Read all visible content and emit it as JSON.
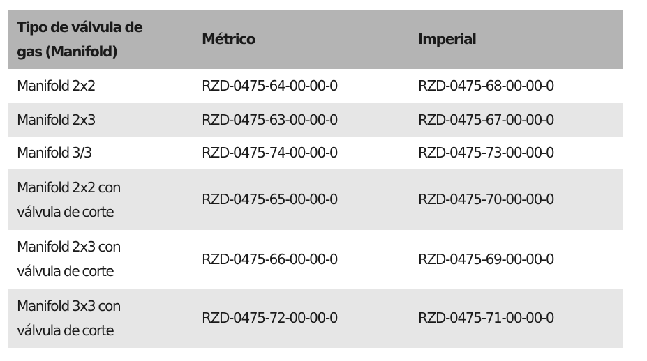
{
  "table": {
    "header": [
      "Tipo de válvula de gas (Manifold)",
      "Métrico",
      "Imperial"
    ],
    "rows": [
      [
        "Manifold 2x2",
        "RZD-0475-64-00-00-0",
        "RZD-0475-68-00-00-0"
      ],
      [
        "Manifold 2x3",
        "RZD-0475-63-00-00-0",
        "RZD-0475-67-00-00-0"
      ],
      [
        "Manifold 3/3",
        "RZD-0475-74-00-00-0",
        "RZD-0475-73-00-00-0"
      ],
      [
        "Manifold 2x2 con válvula de corte",
        "RZD-0475-65-00-00-0",
        "RZD-0475-70-00-00-0"
      ],
      [
        "Manifold 2x3 con válvula de corte",
        "RZD-0475-66-00-00-0",
        "RZD-0475-69-00-00-0"
      ],
      [
        "Manifold 3x3 con válvula de corte",
        "RZD-0475-72-00-00-0",
        "RZD-0475-71-00-00-0"
      ]
    ]
  }
}
